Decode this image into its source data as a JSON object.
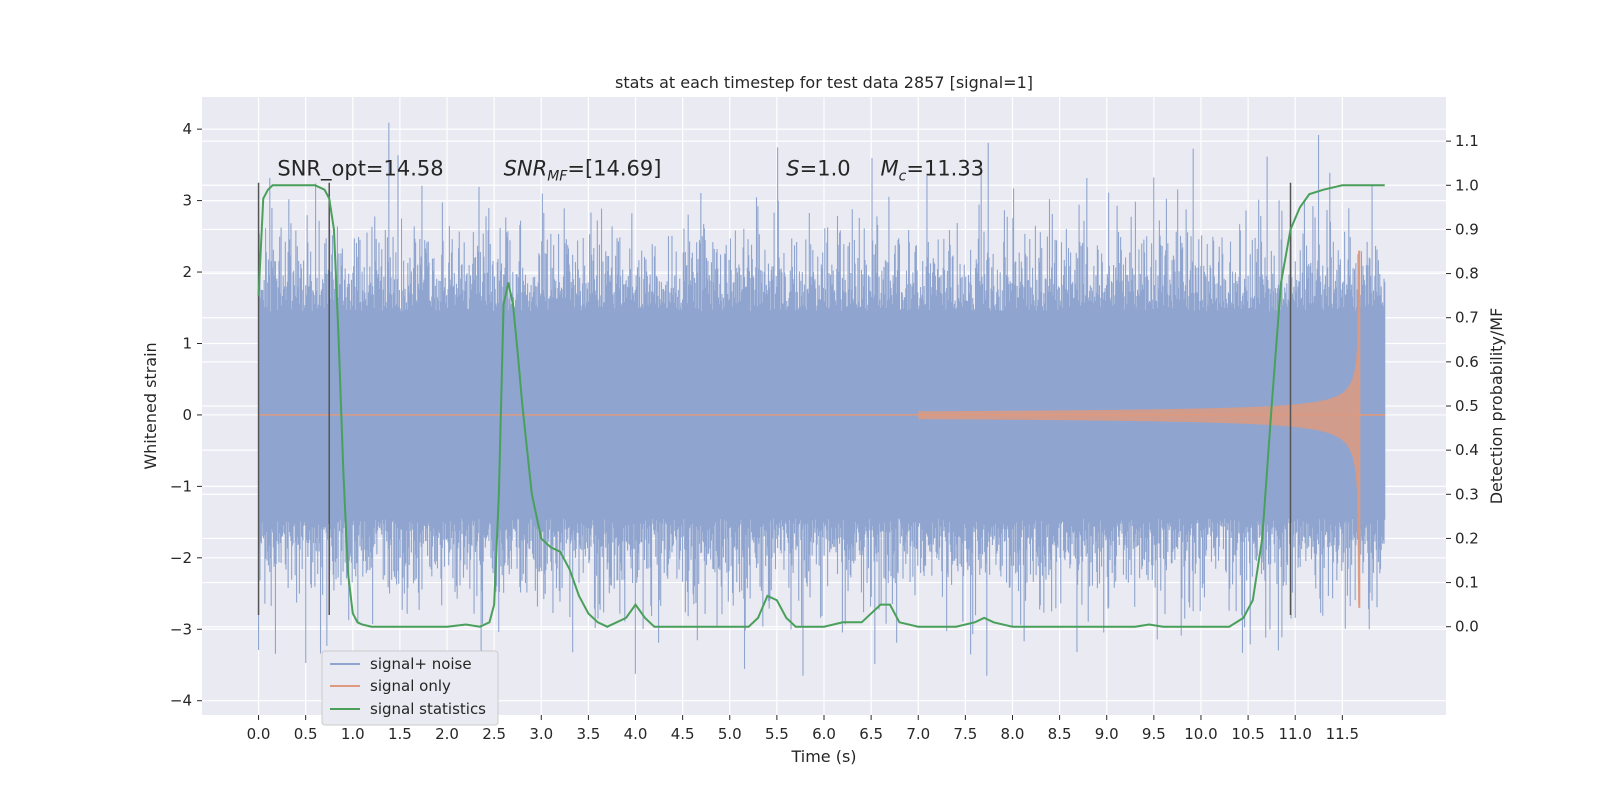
{
  "chart_data": {
    "type": "line",
    "title": "stats at each timestep for test data 2857 [signal=1]",
    "xlabel": "Time (s)",
    "ylabel_left": "Whitened strain",
    "ylabel_right": "Detection probability/MF",
    "xlim": [
      -0.6,
      12.6
    ],
    "ylim_left": [
      -4.2,
      4.45
    ],
    "ylim_right": [
      -0.2,
      1.2
    ],
    "x_ticks": [
      "0.0",
      "0.5",
      "1.0",
      "1.5",
      "2.0",
      "2.5",
      "3.0",
      "3.5",
      "4.0",
      "4.5",
      "5.0",
      "5.5",
      "6.0",
      "6.5",
      "7.0",
      "7.5",
      "8.0",
      "8.5",
      "9.0",
      "9.5",
      "10.0",
      "10.5",
      "11.0",
      "11.5"
    ],
    "y_left_ticks": [
      "4",
      "3",
      "2",
      "1",
      "0",
      "−1",
      "−2",
      "−3",
      "−4"
    ],
    "y_right_ticks": [
      "1.1",
      "1.0",
      "0.9",
      "0.8",
      "0.7",
      "0.6",
      "0.5",
      "0.4",
      "0.3",
      "0.2",
      "0.1",
      "0.0"
    ],
    "grid": true,
    "legend_position": "lower-left",
    "series": [
      {
        "name": "signal+ noise",
        "color": "#8fa5cf",
        "description_values": {
          "x_range": [
            0.0,
            11.95
          ],
          "amplitude_typical": 2.0,
          "amplitude_max": 4.1
        }
      },
      {
        "name": "signal only",
        "color": "#dd9a7f",
        "chirp": {
          "start_x": 7.0,
          "merger_x": 11.68,
          "amplitude_at_10": 0.25,
          "amplitude_at_11": 0.45,
          "peak_amplitude": 2.3
        }
      },
      {
        "name": "signal statistics",
        "color": "#4aa05a",
        "axis": "right",
        "x": [
          0.0,
          0.05,
          0.1,
          0.15,
          0.2,
          0.3,
          0.4,
          0.5,
          0.6,
          0.7,
          0.75,
          0.8,
          0.85,
          0.9,
          0.95,
          1.0,
          1.05,
          1.1,
          1.2,
          1.3,
          1.5,
          2.0,
          2.2,
          2.35,
          2.45,
          2.5,
          2.55,
          2.6,
          2.65,
          2.7,
          2.75,
          2.8,
          2.9,
          3.0,
          3.1,
          3.2,
          3.3,
          3.4,
          3.5,
          3.6,
          3.7,
          3.8,
          3.9,
          4.0,
          4.1,
          4.2,
          4.4,
          4.8,
          5.2,
          5.3,
          5.4,
          5.5,
          5.6,
          5.7,
          5.9,
          6.0,
          6.2,
          6.4,
          6.6,
          6.7,
          6.8,
          7.0,
          7.4,
          7.6,
          7.7,
          7.8,
          8.0,
          8.5,
          9.0,
          9.3,
          9.45,
          9.6,
          10.0,
          10.3,
          10.45,
          10.55,
          10.65,
          10.75,
          10.85,
          10.95,
          11.05,
          11.15,
          11.3,
          11.5,
          11.7,
          11.9,
          11.95
        ],
        "y": [
          0.75,
          0.97,
          0.99,
          1.0,
          1.0,
          1.0,
          1.0,
          1.0,
          1.0,
          0.99,
          0.97,
          0.9,
          0.65,
          0.35,
          0.12,
          0.03,
          0.01,
          0.005,
          0.0,
          0.0,
          0.0,
          0.0,
          0.005,
          0.0,
          0.01,
          0.05,
          0.3,
          0.73,
          0.78,
          0.73,
          0.62,
          0.5,
          0.3,
          0.2,
          0.18,
          0.17,
          0.13,
          0.07,
          0.03,
          0.01,
          0.0,
          0.01,
          0.02,
          0.05,
          0.02,
          0.0,
          0.0,
          0.0,
          0.0,
          0.02,
          0.07,
          0.06,
          0.02,
          0.0,
          0.0,
          0.0,
          0.01,
          0.01,
          0.05,
          0.05,
          0.01,
          0.0,
          0.0,
          0.01,
          0.02,
          0.01,
          0.0,
          0.0,
          0.0,
          0.0,
          0.005,
          0.0,
          0.0,
          0.0,
          0.02,
          0.06,
          0.2,
          0.5,
          0.78,
          0.9,
          0.95,
          0.98,
          0.99,
          1.0,
          1.0,
          1.0,
          1.0
        ]
      }
    ],
    "vertical_lines": [
      0.0,
      0.75,
      10.95
    ],
    "vertical_lines_range": [
      -2.8,
      3.25
    ],
    "annotations": [
      {
        "text": "SNR_opt=14.58",
        "x": 0.2,
        "y": 3.35
      },
      {
        "text_base": "SNR",
        "text_sub": "MF",
        "text_rest": "=[14.69]",
        "x": 2.6,
        "y": 3.35
      },
      {
        "text_base": "S",
        "text_sub": "",
        "text_rest": "=1.0",
        "x": 5.6,
        "y": 3.35
      },
      {
        "text_base": "M",
        "text_sub": "c",
        "text_rest": "=11.33",
        "x": 6.6,
        "y": 3.35
      }
    ]
  }
}
